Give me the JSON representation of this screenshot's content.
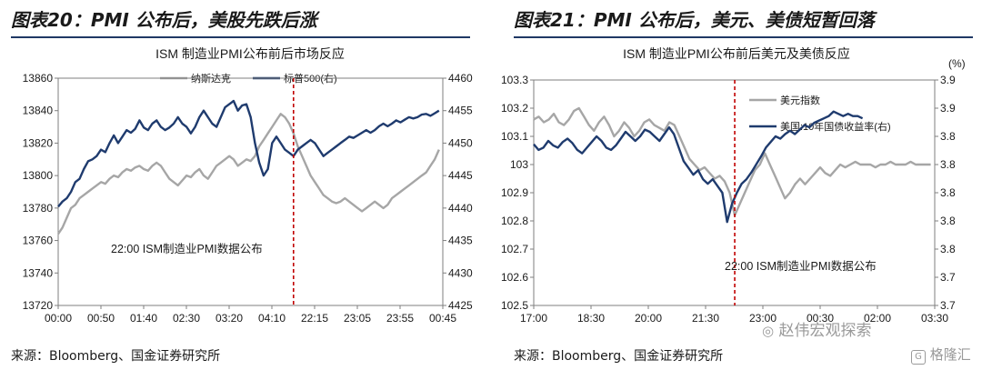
{
  "left": {
    "fig_title": "图表20：PMI 公布后，美股先跌后涨",
    "source": "来源：Bloomberg、国金证券研究所",
    "chart_data": {
      "type": "line",
      "title": "ISM 制造业PMI公布前后市场反应",
      "x_ticks": [
        "00:00",
        "00:50",
        "01:40",
        "02:30",
        "03:20",
        "04:10",
        "22:15",
        "23:05",
        "23:55",
        "00:45"
      ],
      "yleft_ticks": [
        "13720",
        "13740",
        "13760",
        "13780",
        "13800",
        "13820",
        "13840",
        "13860"
      ],
      "yright_ticks": [
        "4425",
        "4430",
        "4435",
        "4440",
        "4445",
        "4450",
        "4455",
        "4460"
      ],
      "ylim_left": [
        13720,
        13860
      ],
      "ylim_right": [
        4425,
        4460
      ],
      "event_index": 55,
      "annotation": "22:00 ISM制造业PMI数据公布",
      "series": [
        {
          "name": "纳斯达克",
          "axis": "left",
          "color": "#a6a6a6",
          "values": [
            13764,
            13768,
            13774,
            13780,
            13782,
            13786,
            13788,
            13790,
            13792,
            13794,
            13796,
            13795,
            13798,
            13800,
            13799,
            13802,
            13804,
            13803,
            13805,
            13806,
            13804,
            13803,
            13806,
            13808,
            13806,
            13802,
            13798,
            13796,
            13794,
            13797,
            13800,
            13799,
            13802,
            13804,
            13800,
            13798,
            13802,
            13806,
            13808,
            13810,
            13812,
            13810,
            13806,
            13808,
            13810,
            13809,
            13812,
            13818,
            13822,
            13826,
            13830,
            13834,
            13838,
            13836,
            13832,
            13826,
            13818,
            13812,
            13806,
            13800,
            13796,
            13792,
            13788,
            13786,
            13784,
            13783,
            13784,
            13786,
            13784,
            13782,
            13780,
            13778,
            13780,
            13782,
            13784,
            13782,
            13780,
            13782,
            13786,
            13788,
            13790,
            13792,
            13794,
            13796,
            13798,
            13800,
            13802,
            13806,
            13810,
            13816
          ]
        },
        {
          "name": "标普500(右)",
          "axis": "right",
          "color": "#1f3b6e",
          "values": [
            4440.2,
            4441.0,
            4441.5,
            4442.5,
            4444.0,
            4444.5,
            4446.0,
            4447.2,
            4447.5,
            4448.0,
            4449.0,
            4448.6,
            4450.0,
            4451.2,
            4450.0,
            4451.0,
            4452.0,
            4451.6,
            4452.2,
            4453.5,
            4452.4,
            4452.0,
            4453.0,
            4453.5,
            4452.5,
            4452.0,
            4452.4,
            4453.0,
            4454.0,
            4453.0,
            4452.5,
            4451.5,
            4452.5,
            4454.0,
            4455.0,
            4454.0,
            4453.0,
            4452.5,
            4454.0,
            4455.5,
            4456.0,
            4456.5,
            4455.0,
            4455.8,
            4456.0,
            4454.0,
            4450.0,
            4447.0,
            4445.0,
            4446.0,
            4450.0,
            4451.0,
            4450.0,
            4449.0,
            4448.5,
            4448.0,
            4449.0,
            4449.5,
            4450.0,
            4450.5,
            4450.0,
            4449.0,
            4448.0,
            4448.5,
            4449.0,
            4449.5,
            4450.0,
            4450.5,
            4451.0,
            4450.8,
            4451.2,
            4451.6,
            4452.0,
            4451.6,
            4452.0,
            4452.6,
            4453.0,
            4452.6,
            4453.0,
            4453.5,
            4453.2,
            4453.6,
            4454.0,
            4453.8,
            4454.0,
            4454.4,
            4454.5,
            4454.2,
            4454.6,
            4455.0
          ]
        }
      ]
    }
  },
  "right": {
    "fig_title": "图表21：PMI 公布后，美元、美债短暂回落",
    "source": "来源：Bloomberg、国金证券研究所",
    "chart_data": {
      "type": "line",
      "title": "ISM 制造业PMI公布前后美元及美债反应",
      "unit_right": "(%)",
      "x_ticks": [
        "17:00",
        "18:30",
        "20:00",
        "21:30",
        "23:00",
        "00:30",
        "02:00",
        "03:30"
      ],
      "yleft_ticks": [
        "102.5",
        "102.6",
        "102.7",
        "102.8",
        "102.9",
        "103",
        "103.1",
        "103.2",
        "103.3"
      ],
      "yright_ticks": [
        "3.7",
        "3.7",
        "3.8",
        "3.8",
        "3.8",
        "3.8",
        "3.8",
        "3.9",
        "3.9"
      ],
      "ylim_left": [
        102.5,
        103.3
      ],
      "ylim_right": [
        3.7,
        3.9
      ],
      "event_index": 40,
      "annotation": "22:00 ISM制造业PMI数据公布",
      "series": [
        {
          "name": "美元指数",
          "axis": "left",
          "color": "#a6a6a6",
          "values": [
            103.16,
            103.17,
            103.15,
            103.16,
            103.18,
            103.15,
            103.14,
            103.16,
            103.19,
            103.2,
            103.17,
            103.14,
            103.12,
            103.15,
            103.17,
            103.14,
            103.1,
            103.12,
            103.15,
            103.13,
            103.1,
            103.12,
            103.15,
            103.16,
            103.14,
            103.13,
            103.12,
            103.15,
            103.14,
            103.1,
            103.06,
            103.02,
            103.0,
            102.98,
            102.99,
            102.97,
            102.95,
            102.96,
            102.94,
            102.9,
            102.82,
            102.86,
            102.9,
            102.94,
            102.98,
            103.0,
            103.04,
            103.0,
            102.96,
            102.92,
            102.88,
            102.9,
            102.93,
            102.95,
            102.93,
            102.95,
            102.97,
            102.99,
            102.97,
            102.96,
            102.98,
            103.0,
            102.99,
            103.0,
            103.01,
            103.0,
            103.0,
            103.0,
            102.99,
            103.0,
            103.0,
            103.01,
            103.0,
            103.0,
            103.0,
            103.01,
            103.0,
            103.0,
            103.0,
            103.0
          ]
        },
        {
          "name": "美国:10年国债收益率(右)",
          "axis": "right",
          "color": "#1f3b6e",
          "values": [
            3.843,
            3.838,
            3.84,
            3.846,
            3.842,
            3.84,
            3.845,
            3.848,
            3.844,
            3.838,
            3.835,
            3.84,
            3.845,
            3.85,
            3.846,
            3.84,
            3.838,
            3.842,
            3.848,
            3.854,
            3.85,
            3.846,
            3.85,
            3.856,
            3.854,
            3.85,
            3.846,
            3.852,
            3.858,
            3.852,
            3.84,
            3.828,
            3.822,
            3.816,
            3.82,
            3.812,
            3.808,
            3.812,
            3.806,
            3.8,
            3.774,
            3.79,
            3.8,
            3.808,
            3.812,
            3.818,
            3.825,
            3.832,
            3.84,
            3.845,
            3.85,
            3.848,
            3.852,
            3.855,
            3.852,
            3.856,
            3.86,
            3.858,
            3.862,
            3.864,
            3.866,
            3.868,
            3.872,
            3.87,
            3.868,
            3.87,
            3.868,
            3.868,
            3.866
          ]
        }
      ]
    }
  },
  "watermark": {
    "brand": "赵伟宏观探索",
    "logo": "格隆汇"
  }
}
